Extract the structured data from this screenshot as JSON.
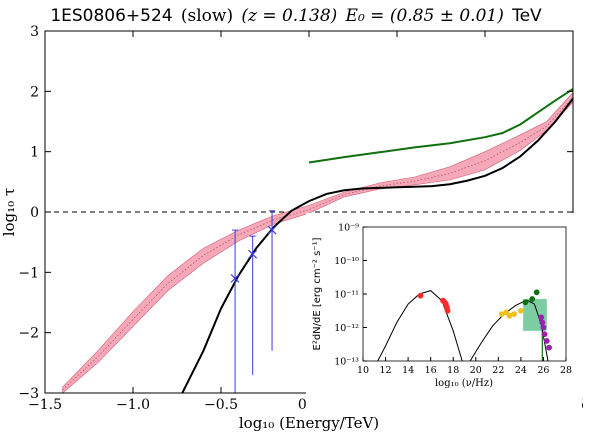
{
  "chart_data": [
    {
      "panel": "main",
      "type": "line",
      "title": {
        "source": "1ES0806+524",
        "mode": "(slow)",
        "redshift": "(z = 0.138)",
        "energy": "E₀ = (0.85 ± 0.01)",
        "unit": "TeV"
      },
      "xlabel": "log₁₀ (Energy/TeV)",
      "ylabel": "log₁₀ τ",
      "xlim": [
        -1.5,
        1.5
      ],
      "ylim": [
        -3,
        3
      ],
      "xticks": [
        "−1.5",
        "−1.0",
        "−0.5",
        "0.0",
        "0.5",
        "1.0",
        "1.5"
      ],
      "xtick_values": [
        -1.5,
        -1.0,
        -0.5,
        0.0,
        0.5,
        1.0,
        1.5
      ],
      "yticks": [
        "−3",
        "−2",
        "−1",
        "0",
        "1",
        "2",
        "3"
      ],
      "ytick_values": [
        -3,
        -2,
        -1,
        0,
        1,
        2,
        3
      ],
      "reference_line": {
        "y": 0,
        "style": "dashed",
        "color": "#000000"
      },
      "series": [
        {
          "kind": "band",
          "color": "#f4a8b8",
          "edge_color": "#d4607a",
          "x": [
            -1.4,
            -1.2,
            -1.0,
            -0.8,
            -0.6,
            -0.4,
            -0.2,
            0.0,
            0.2,
            0.4,
            0.6,
            0.8,
            1.0,
            1.2,
            1.35,
            1.5
          ],
          "lower": [
            -3.0,
            -2.5,
            -1.9,
            -1.3,
            -0.85,
            -0.48,
            -0.2,
            -0.02,
            0.25,
            0.38,
            0.45,
            0.53,
            0.7,
            1.02,
            1.35,
            1.82
          ],
          "upper": [
            -2.9,
            -2.3,
            -1.65,
            -1.05,
            -0.6,
            -0.3,
            -0.06,
            0.11,
            0.33,
            0.48,
            0.58,
            0.75,
            1.0,
            1.28,
            1.5,
            1.98
          ],
          "center": [
            -2.95,
            -2.4,
            -1.78,
            -1.18,
            -0.72,
            -0.38,
            -0.13,
            0.04,
            0.29,
            0.43,
            0.51,
            0.64,
            0.85,
            1.15,
            1.42,
            1.9
          ]
        },
        {
          "kind": "line",
          "color": "#000000",
          "x": [
            -0.72,
            -0.6,
            -0.5,
            -0.4,
            -0.3,
            -0.2,
            -0.1,
            0.0,
            0.1,
            0.2,
            0.3,
            0.4,
            0.5,
            0.6,
            0.7,
            0.8,
            0.9,
            1.0,
            1.1,
            1.2,
            1.3,
            1.4,
            1.5
          ],
          "y": [
            -3.0,
            -2.3,
            -1.6,
            -1.05,
            -0.6,
            -0.25,
            0.02,
            0.18,
            0.3,
            0.36,
            0.39,
            0.4,
            0.41,
            0.42,
            0.43,
            0.46,
            0.52,
            0.6,
            0.73,
            0.92,
            1.18,
            1.5,
            1.88
          ]
        },
        {
          "kind": "line",
          "color": "#107010",
          "x": [
            0.0,
            0.2,
            0.4,
            0.6,
            0.8,
            1.0,
            1.1,
            1.2,
            1.3,
            1.4,
            1.5
          ],
          "y": [
            0.82,
            0.91,
            0.99,
            1.07,
            1.14,
            1.24,
            1.31,
            1.45,
            1.65,
            1.85,
            2.04
          ]
        },
        {
          "kind": "errorbar",
          "color": "#3a3ae0",
          "points": [
            {
              "x": -0.42,
              "y": -1.1,
              "ylo": -3.0,
              "yhi": -0.3
            },
            {
              "x": -0.32,
              "y": -0.7,
              "ylo": -2.7,
              "yhi": -0.4
            },
            {
              "x": -0.21,
              "y": -0.3,
              "ylo": -2.3,
              "yhi": 0.02
            }
          ]
        }
      ]
    },
    {
      "panel": "inset",
      "type": "scatter",
      "xlabel": "log₁₀ (ν/Hz)",
      "ylabel": "E²dN/dE [erg cm⁻² s⁻¹]",
      "xlim": [
        10,
        28
      ],
      "ylim_log10": [
        -13,
        -9
      ],
      "xticks": [
        "10",
        "12",
        "14",
        "16",
        "18",
        "20",
        "22",
        "24",
        "26",
        "28"
      ],
      "xtick_values": [
        10,
        12,
        14,
        16,
        18,
        20,
        22,
        24,
        26,
        28
      ],
      "yticks": [
        "10⁻¹³",
        "10⁻¹²",
        "10⁻¹¹",
        "10⁻¹⁰",
        "10⁻⁹"
      ],
      "ytick_values": [
        -13,
        -12,
        -11,
        -10,
        -9
      ],
      "model_curves": [
        {
          "color": "#000000",
          "x": [
            11.3,
            12,
            13,
            14,
            15,
            16,
            17,
            18,
            18.8
          ],
          "y": [
            -13.0,
            -12.55,
            -11.85,
            -11.3,
            -11.0,
            -10.9,
            -11.2,
            -12.1,
            -13.0
          ]
        },
        {
          "color": "#000000",
          "x": [
            19.5,
            20.5,
            21.5,
            22.5,
            23.5,
            24.5,
            25.2,
            25.8,
            26.4
          ],
          "y": [
            -13.0,
            -12.45,
            -11.95,
            -11.6,
            -11.35,
            -11.18,
            -11.3,
            -11.9,
            -13.0
          ]
        }
      ],
      "bands": [
        {
          "color": "#5cc08c",
          "x": [
            24.2,
            26.3
          ],
          "y_log10": [
            -12.1,
            -11.15
          ]
        }
      ],
      "point_groups": [
        {
          "color": "#ff2a2a",
          "points": [
            [
              15.1,
              -11.05
            ],
            [
              17.1,
              -11.2
            ],
            [
              17.25,
              -11.25
            ],
            [
              17.35,
              -11.3
            ],
            [
              17.45,
              -11.4
            ],
            [
              17.5,
              -11.5
            ]
          ]
        },
        {
          "color": "#f0c020",
          "points": [
            [
              22.3,
              -11.6
            ],
            [
              22.7,
              -11.55
            ],
            [
              23.0,
              -11.65
            ],
            [
              23.4,
              -11.6
            ],
            [
              24.0,
              -11.5
            ]
          ]
        },
        {
          "color": "#107010",
          "points": [
            [
              24.4,
              -11.25
            ],
            [
              25.0,
              -11.15
            ],
            [
              25.4,
              -10.95
            ]
          ]
        },
        {
          "color": "#9a20b0",
          "points": [
            [
              25.8,
              -11.7
            ],
            [
              25.9,
              -11.85
            ],
            [
              26.0,
              -12.0
            ],
            [
              26.1,
              -12.2
            ],
            [
              26.3,
              -12.4
            ],
            [
              26.5,
              -12.6
            ]
          ]
        }
      ]
    }
  ]
}
